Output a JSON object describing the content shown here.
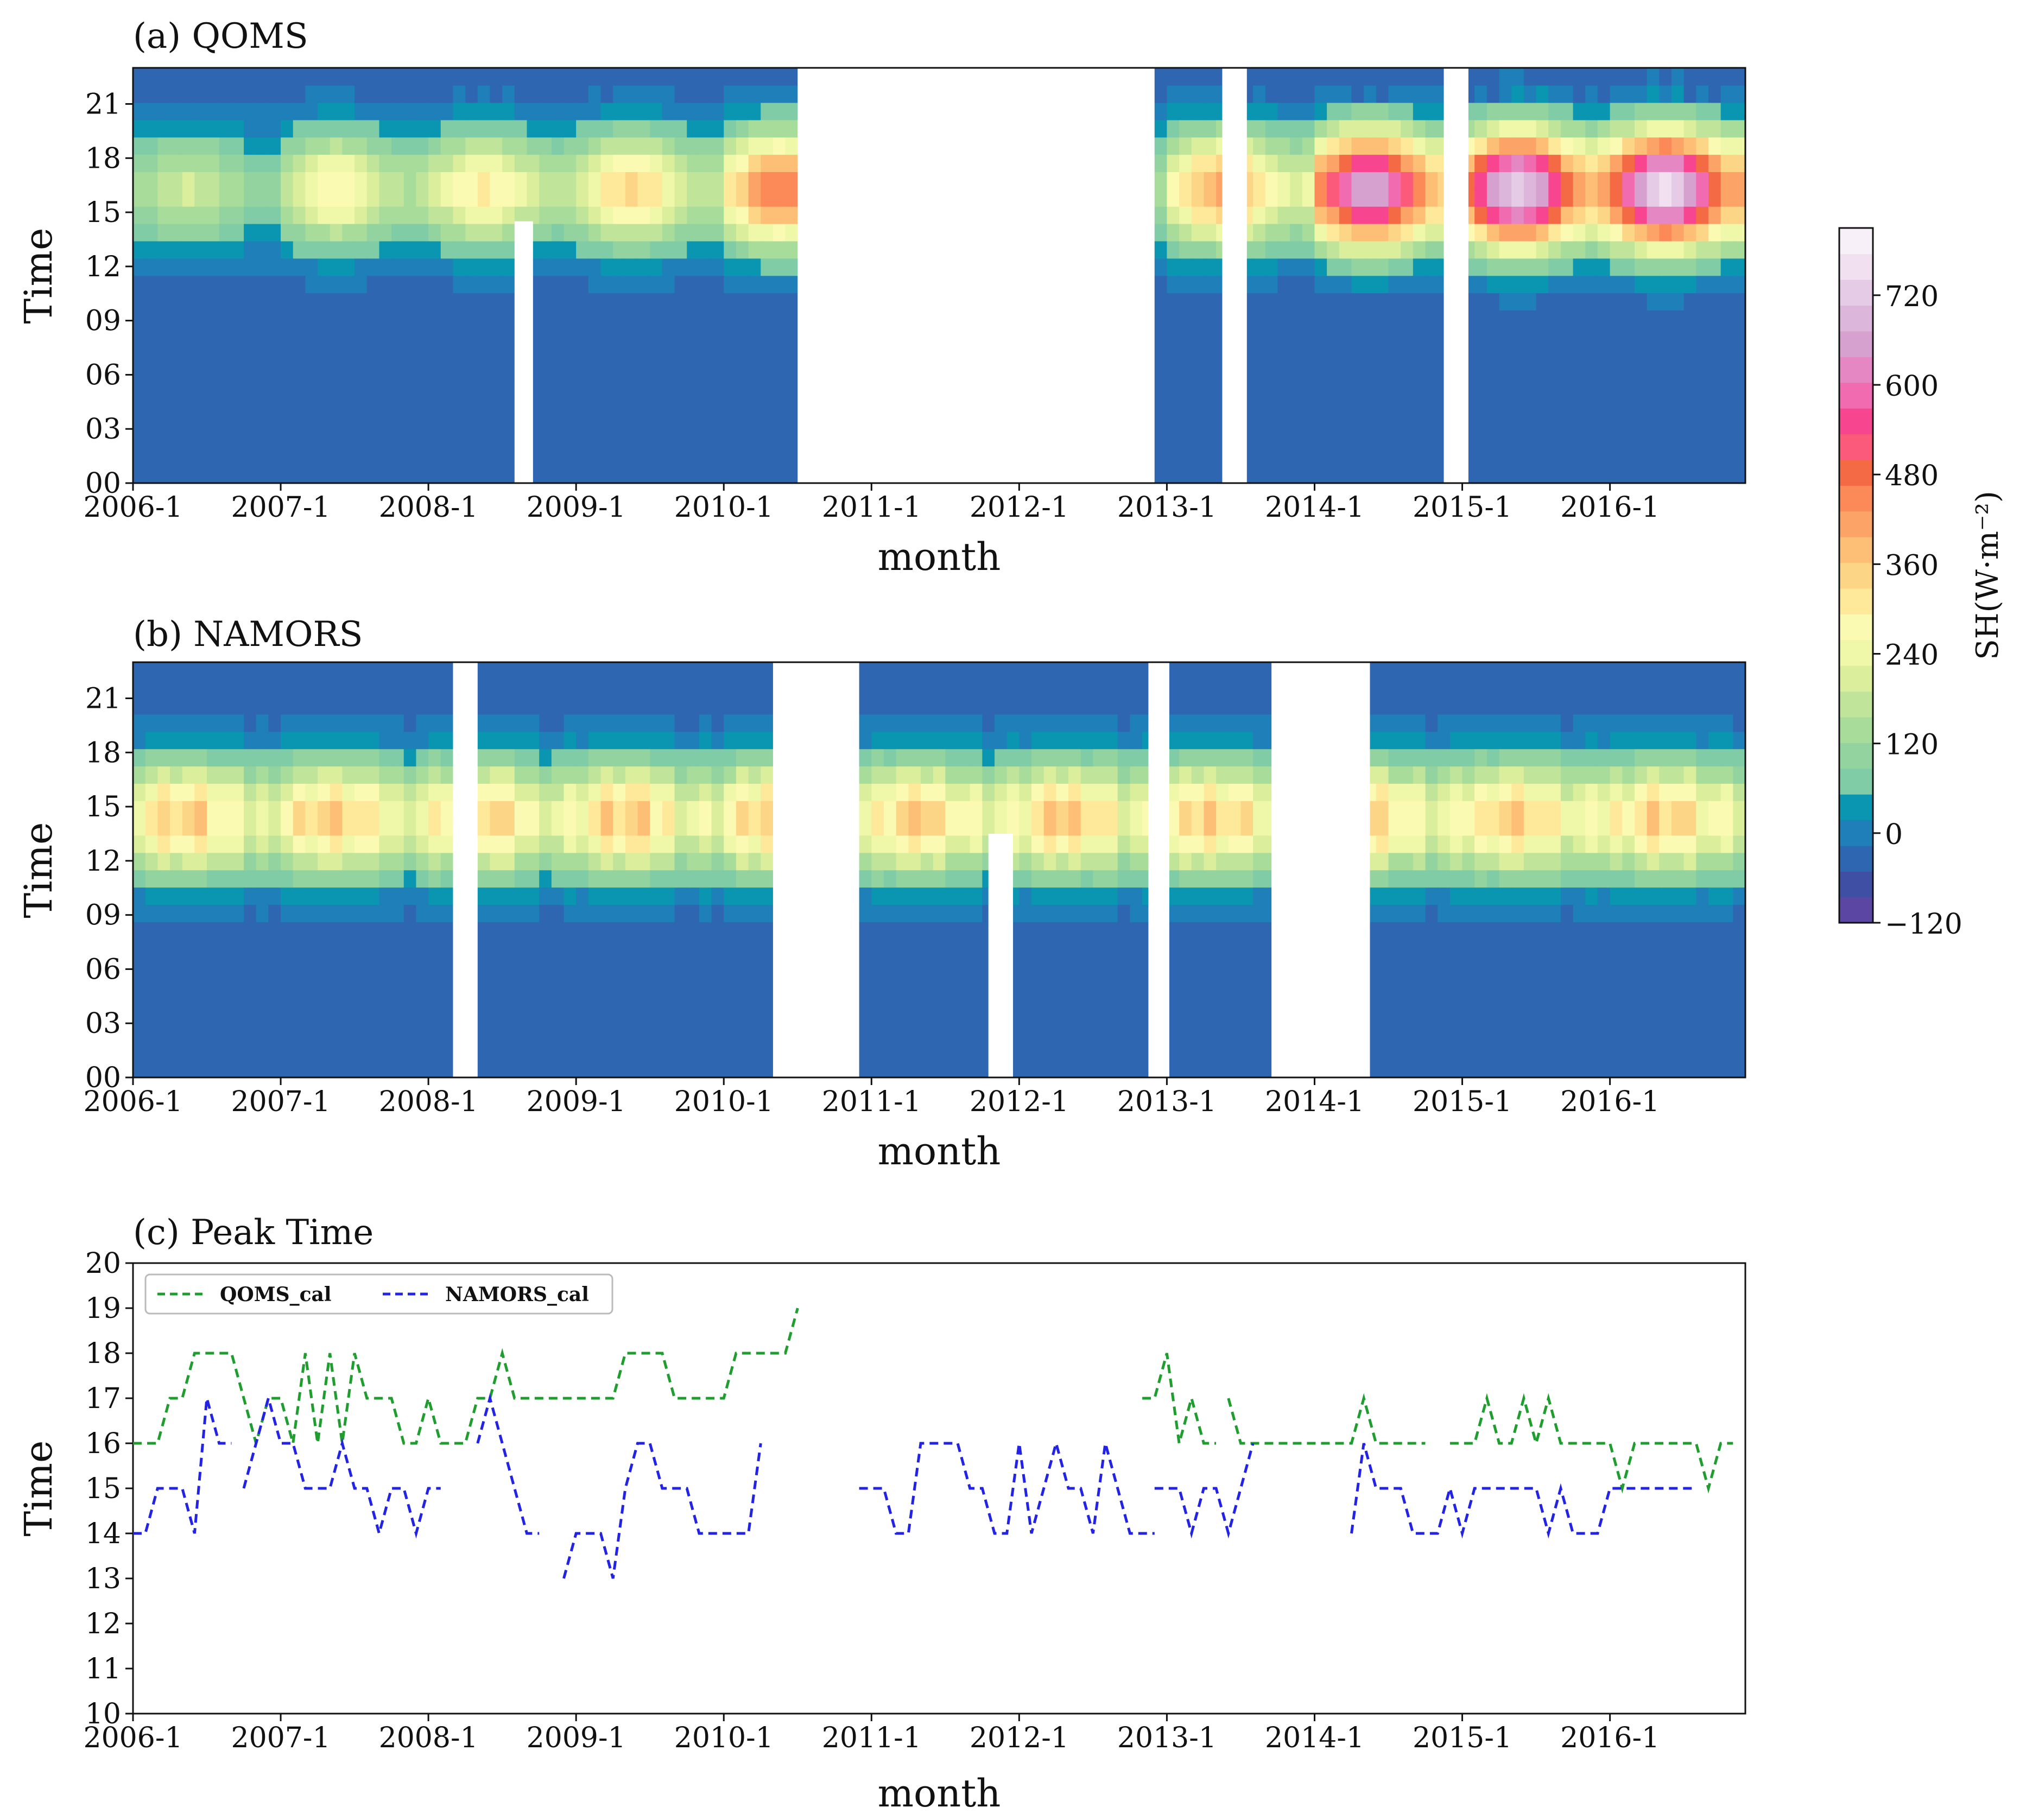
{
  "figure": {
    "colorbar_label": "SH(W·m⁻²)"
  },
  "chart_data": [
    {
      "id": "a",
      "type": "heatmap",
      "title": "(a) QOMS",
      "xlabel": "month",
      "ylabel": "Time",
      "x_tick_labels": [
        "2006-1",
        "2007-1",
        "2008-1",
        "2009-1",
        "2010-1",
        "2011-1",
        "2012-1",
        "2013-1",
        "2014-1",
        "2015-1",
        "2016-1"
      ],
      "y_tick_labels": [
        "00",
        "03",
        "06",
        "09",
        "12",
        "15",
        "18",
        "21"
      ],
      "xlim_months": [
        0,
        131
      ],
      "ylim_hours": [
        0,
        23
      ],
      "variable": "SH (W m-2)",
      "missing_months": [
        [
          31,
          32.5,
          0,
          14.5
        ],
        [
          54,
          83,
          0,
          23
        ],
        [
          88.5,
          90.5,
          0,
          23
        ],
        [
          106.5,
          108.5,
          0,
          23
        ]
      ],
      "peak_month_scale": [
        200,
        0,
        0,
        0,
        0,
        0,
        0,
        0,
        0,
        0,
        0,
        0,
        300,
        0,
        0,
        0,
        0,
        0,
        0,
        0,
        0,
        0,
        0,
        0,
        310,
        0,
        0,
        0,
        0,
        0,
        0,
        0,
        0,
        0,
        0,
        0,
        350,
        0,
        0,
        0,
        0,
        0,
        0,
        0,
        0,
        0,
        0,
        0,
        480,
        0,
        0,
        0,
        0,
        0,
        0,
        0,
        0,
        0,
        0,
        0,
        0,
        0,
        0,
        0,
        0,
        0,
        0,
        0,
        0,
        0,
        0,
        0,
        0,
        0,
        0,
        0,
        0,
        0,
        0,
        0,
        0,
        0,
        0,
        0,
        420,
        0,
        0,
        0,
        0,
        0,
        0,
        0,
        0,
        0,
        0,
        0,
        700,
        0,
        0,
        0,
        0,
        0,
        0,
        0,
        0,
        0,
        0,
        0,
        760,
        0,
        0,
        0,
        0,
        0,
        0,
        0,
        0,
        0,
        0,
        0,
        780,
        0,
        0,
        0,
        0,
        0,
        0,
        0,
        0,
        0,
        0,
        0
      ]
    },
    {
      "id": "b",
      "type": "heatmap",
      "title": "(b) NAMORS",
      "xlabel": "month",
      "ylabel": "Time",
      "x_tick_labels": [
        "2006-1",
        "2007-1",
        "2008-1",
        "2009-1",
        "2010-1",
        "2011-1",
        "2012-1",
        "2013-1",
        "2014-1",
        "2015-1",
        "2016-1"
      ],
      "y_tick_labels": [
        "00",
        "03",
        "06",
        "09",
        "12",
        "15",
        "18",
        "21"
      ],
      "xlim_months": [
        0,
        131
      ],
      "ylim_hours": [
        0,
        23
      ],
      "variable": "SH (W m-2)",
      "missing_months": [
        [
          26,
          28,
          0,
          23
        ],
        [
          52,
          59,
          0,
          23
        ],
        [
          69.5,
          71.5,
          0,
          13.5
        ],
        [
          82.5,
          84.2,
          0,
          23
        ],
        [
          92.5,
          100.5,
          0,
          23
        ]
      ]
    },
    {
      "id": "c",
      "type": "line",
      "title": "(c) Peak Time",
      "xlabel": "month",
      "ylabel": "Time",
      "x_tick_labels": [
        "2006-1",
        "2007-1",
        "2008-1",
        "2009-1",
        "2010-1",
        "2011-1",
        "2012-1",
        "2013-1",
        "2014-1",
        "2015-1",
        "2016-1"
      ],
      "y_tick_labels": [
        "10",
        "11",
        "12",
        "13",
        "14",
        "15",
        "16",
        "17",
        "18",
        "19",
        "20"
      ],
      "xlim_months": [
        0,
        131
      ],
      "ylim": [
        10,
        20
      ],
      "series": [
        {
          "name": "QOMS_cal",
          "color": "#1f9e2f",
          "x": [
            0,
            1,
            2,
            3,
            4,
            5,
            6,
            7,
            8,
            9,
            10,
            11,
            12,
            13,
            14,
            15,
            16,
            17,
            18,
            19,
            20,
            21,
            22,
            23,
            24,
            25,
            26,
            27,
            28,
            29,
            30,
            31,
            32,
            33,
            34,
            35,
            36,
            37,
            38,
            39,
            40,
            41,
            42,
            43,
            44,
            45,
            46,
            47,
            48,
            49,
            50,
            51,
            52,
            53,
            54,
            null,
            82,
            83,
            84,
            85,
            86,
            87,
            88,
            null,
            89,
            90,
            91,
            92,
            93,
            94,
            95,
            96,
            97,
            98,
            99,
            100,
            101,
            102,
            103,
            104,
            105,
            null,
            107,
            108,
            109,
            110,
            111,
            112,
            113,
            114,
            115,
            116,
            117,
            118,
            119,
            120,
            121,
            122,
            123,
            124,
            125,
            126,
            127,
            128,
            129,
            130
          ],
          "y": [
            16,
            16,
            16,
            17,
            17,
            18,
            18,
            18,
            18,
            17,
            16,
            17,
            17,
            16,
            18,
            16,
            18,
            16,
            18,
            17,
            17,
            17,
            16,
            16,
            17,
            16,
            16,
            16,
            17,
            17,
            18,
            17,
            17,
            17,
            17,
            17,
            17,
            17,
            17,
            17,
            18,
            18,
            18,
            18,
            17,
            17,
            17,
            17,
            17,
            18,
            18,
            18,
            18,
            18,
            19,
            null,
            17,
            17,
            18,
            16,
            17,
            16,
            16,
            null,
            17,
            16,
            16,
            16,
            16,
            16,
            16,
            16,
            16,
            16,
            16,
            17,
            16,
            16,
            16,
            16,
            16,
            null,
            16,
            16,
            16,
            17,
            16,
            16,
            17,
            16,
            17,
            16,
            16,
            16,
            16,
            16,
            15,
            16,
            16,
            16,
            16,
            16,
            16,
            15,
            16,
            16
          ]
        },
        {
          "name": "NAMORS_cal",
          "color": "#2323e6",
          "x": [
            0,
            1,
            2,
            3,
            4,
            5,
            6,
            7,
            8,
            null,
            9,
            10,
            11,
            12,
            13,
            14,
            15,
            16,
            17,
            18,
            19,
            20,
            21,
            22,
            23,
            24,
            25,
            26,
            27,
            28,
            29,
            30,
            31,
            32,
            33,
            null,
            35,
            36,
            37,
            38,
            39,
            40,
            41,
            42,
            43,
            44,
            45,
            46,
            47,
            48,
            49,
            50,
            51,
            null,
            59,
            60,
            61,
            62,
            63,
            64,
            65,
            66,
            67,
            68,
            69,
            70,
            71,
            72,
            73,
            74,
            75,
            76,
            77,
            78,
            79,
            80,
            81,
            82,
            83,
            null,
            83,
            84,
            85,
            86,
            87,
            88,
            89,
            90,
            91,
            null,
            99,
            100,
            101,
            102,
            103,
            104,
            105,
            106,
            107,
            108,
            109,
            110,
            111,
            112,
            113,
            114,
            115,
            116,
            117,
            118,
            119,
            120,
            121,
            122,
            123,
            124,
            125,
            126,
            127
          ],
          "y": [
            14,
            14,
            15,
            15,
            15,
            14,
            17,
            16,
            16,
            null,
            15,
            16,
            17,
            16,
            16,
            15,
            15,
            15,
            16,
            15,
            15,
            14,
            15,
            15,
            14,
            15,
            15,
            null,
            null,
            16,
            17,
            16,
            15,
            14,
            14,
            null,
            13,
            14,
            14,
            14,
            13,
            15,
            16,
            16,
            15,
            15,
            15,
            14,
            14,
            14,
            14,
            14,
            16,
            null,
            15,
            15,
            15,
            14,
            14,
            16,
            16,
            16,
            16,
            15,
            15,
            14,
            14,
            16,
            14,
            15,
            16,
            15,
            15,
            14,
            16,
            15,
            14,
            14,
            14,
            null,
            15,
            15,
            15,
            14,
            15,
            15,
            14,
            15,
            16,
            null,
            14,
            16,
            15,
            15,
            15,
            14,
            14,
            14,
            15,
            14,
            15,
            15,
            15,
            15,
            15,
            15,
            14,
            15,
            14,
            14,
            14,
            15,
            15,
            15,
            15,
            15,
            15,
            15,
            15
          ]
        }
      ]
    }
  ],
  "colorbar": {
    "tick_labels": [
      "720",
      "600",
      "480",
      "360",
      "240",
      "120",
      "0",
      "−120"
    ],
    "range": [
      -120,
      810
    ],
    "colors": [
      "#5b47a3",
      "#3f4fa3",
      "#2f66b2",
      "#1f7fb8",
      "#0a95b0",
      "#7fcca6",
      "#93d39f",
      "#a8dc9b",
      "#c0e49a",
      "#dbee9c",
      "#eff7a8",
      "#fbfab2",
      "#fee99a",
      "#fdd587",
      "#fdbf76",
      "#fca468",
      "#fb8a58",
      "#f46a45",
      "#fb5a7a",
      "#f7468f",
      "#f06bb0",
      "#e487c2",
      "#d7a1cf",
      "#dcb6db",
      "#e6cbe6",
      "#f0e0f0",
      "#f7f0f8"
    ]
  }
}
